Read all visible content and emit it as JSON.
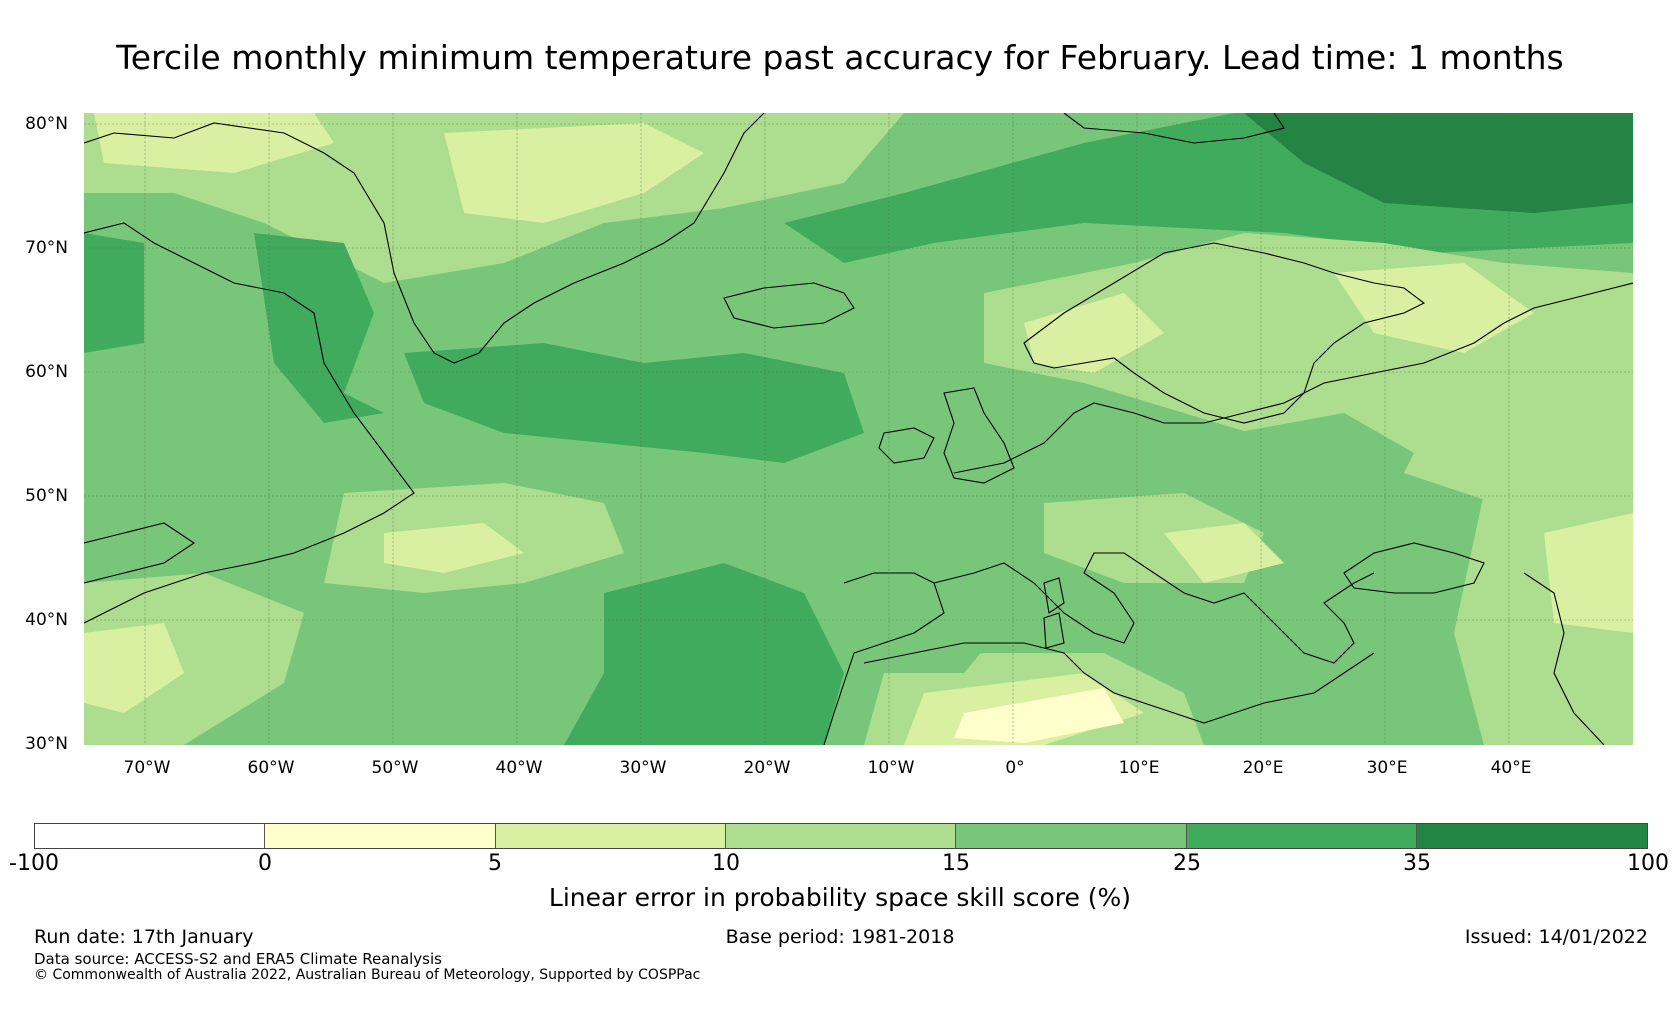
{
  "title": "Tercile monthly minimum temperature past accuracy for February. Lead time: 1 months",
  "map": {
    "region": "North Atlantic and Europe",
    "lat_ticks": [
      "80°N",
      "70°N",
      "60°N",
      "50°N",
      "40°N",
      "30°N"
    ],
    "lon_ticks": [
      "70°W",
      "60°W",
      "50°W",
      "40°W",
      "30°W",
      "20°W",
      "10°W",
      "0°",
      "10°E",
      "20°E",
      "30°E",
      "40°E"
    ]
  },
  "colorbar": {
    "tick_labels": [
      "-100",
      "0",
      "5",
      "10",
      "15",
      "25",
      "35",
      "100"
    ],
    "colors": [
      "#ffffff",
      "#ffffcc",
      "#d9f0a3",
      "#addd8e",
      "#78c679",
      "#41ab5d",
      "#238443"
    ],
    "label": "Linear error in probability space skill score (%)"
  },
  "footer": {
    "run_date": "Run date: 17th January",
    "base_period": "Base period: 1981-2018",
    "issued": "Issued: 14/01/2022",
    "data_source": "Data source: ACCESS-S2 and ERA5 Climate Reanalysis",
    "copyright": "© Commonwealth of Australia 2022, Australian Bureau of Meteorology, Supported by COSPPac"
  }
}
